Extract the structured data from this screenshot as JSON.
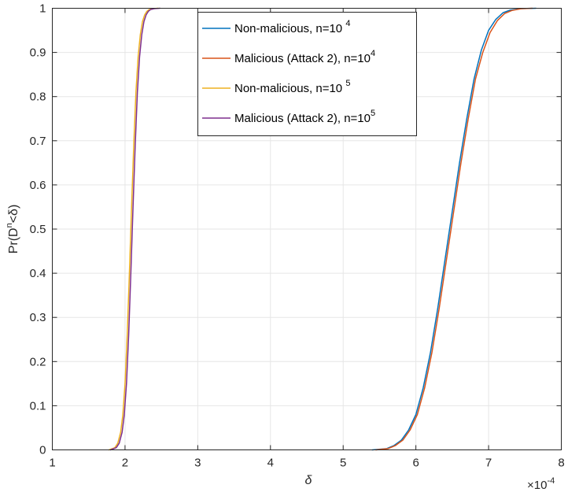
{
  "chart_data": {
    "type": "line",
    "title": "",
    "xlabel": "δ",
    "ylabel": "Pr(D^n<δ)",
    "ylabel_parts": {
      "a": "Pr(D",
      "sup": "n",
      "b": "<δ)"
    },
    "x_multiplier": "×10^-4",
    "x_multiplier_parts": {
      "base": "×10",
      "exp": "-4"
    },
    "xlim": [
      1,
      8
    ],
    "ylim": [
      0,
      1
    ],
    "xticks": [
      "1",
      "2",
      "3",
      "4",
      "5",
      "6",
      "7",
      "8"
    ],
    "yticks": [
      "0",
      "0.1",
      "0.2",
      "0.3",
      "0.4",
      "0.5",
      "0.6",
      "0.7",
      "0.8",
      "0.9",
      "1"
    ],
    "grid": true,
    "legend_position": "top-center",
    "series": [
      {
        "name": "Non-malicious, n=10^4",
        "name_parts": {
          "base": "Non-malicious, n=10 ",
          "sup": "4"
        },
        "color": "#0072BD",
        "x": [
          5.4,
          5.6,
          5.7,
          5.8,
          5.9,
          6.0,
          6.1,
          6.2,
          6.3,
          6.4,
          6.5,
          6.6,
          6.7,
          6.8,
          6.9,
          7.0,
          7.1,
          7.2,
          7.3,
          7.45,
          7.65
        ],
        "y": [
          0,
          0.003,
          0.01,
          0.022,
          0.045,
          0.08,
          0.14,
          0.22,
          0.32,
          0.43,
          0.54,
          0.65,
          0.75,
          0.84,
          0.905,
          0.95,
          0.975,
          0.99,
          0.996,
          0.999,
          1
        ]
      },
      {
        "name": "Malicious (Attack 2), n=10^4",
        "name_parts": {
          "base": "Malicious (Attack 2), n=10",
          "sup": "4"
        },
        "color": "#D95319",
        "x": [
          5.45,
          5.62,
          5.72,
          5.82,
          5.92,
          6.02,
          6.12,
          6.22,
          6.32,
          6.42,
          6.52,
          6.62,
          6.72,
          6.82,
          6.92,
          7.02,
          7.12,
          7.22,
          7.32,
          7.45,
          7.6
        ],
        "y": [
          0,
          0.003,
          0.01,
          0.022,
          0.045,
          0.08,
          0.14,
          0.22,
          0.32,
          0.43,
          0.54,
          0.65,
          0.75,
          0.84,
          0.9,
          0.945,
          0.972,
          0.988,
          0.995,
          0.999,
          1
        ]
      },
      {
        "name": "Non-malicious, n=10^5",
        "name_parts": {
          "base": "Non-malicious, n=10 ",
          "sup": "5"
        },
        "color": "#EDB120",
        "x": [
          1.78,
          1.86,
          1.9,
          1.94,
          1.97,
          2.0,
          2.03,
          2.06,
          2.09,
          2.12,
          2.15,
          2.18,
          2.21,
          2.24,
          2.27,
          2.3,
          2.33,
          2.38,
          2.45
        ],
        "y": [
          0,
          0.005,
          0.015,
          0.04,
          0.08,
          0.15,
          0.26,
          0.4,
          0.55,
          0.69,
          0.81,
          0.89,
          0.94,
          0.97,
          0.985,
          0.993,
          0.997,
          0.999,
          1
        ]
      },
      {
        "name": "Malicious (Attack 2), n=10^5",
        "name_parts": {
          "base": "Malicious (Attack 2), n=10",
          "sup": "5"
        },
        "color": "#7E2F8E",
        "x": [
          1.8,
          1.88,
          1.92,
          1.96,
          1.99,
          2.02,
          2.05,
          2.08,
          2.11,
          2.14,
          2.17,
          2.2,
          2.23,
          2.26,
          2.29,
          2.32,
          2.35,
          2.4,
          2.48
        ],
        "y": [
          0,
          0.005,
          0.015,
          0.04,
          0.08,
          0.15,
          0.26,
          0.4,
          0.55,
          0.69,
          0.81,
          0.89,
          0.94,
          0.97,
          0.985,
          0.993,
          0.997,
          0.999,
          1
        ]
      }
    ]
  }
}
